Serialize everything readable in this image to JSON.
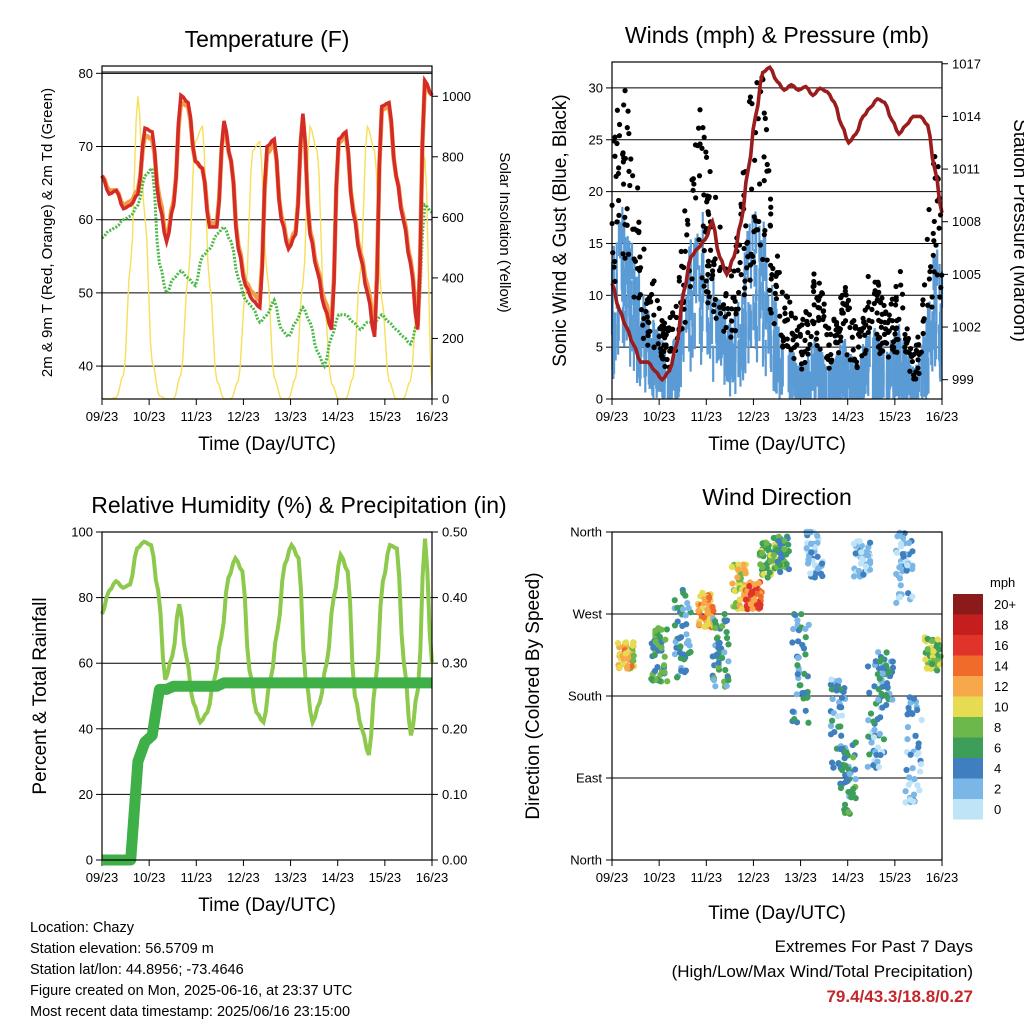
{
  "chart_data": [
    {
      "type": "line",
      "title": "Temperature (F)",
      "xlabel": "Time (Day/UTC)",
      "ylabel": "2m & 9m T (Red, Orange) & 2m Td (Green)",
      "ylabel_right": "Solar Insolation (Yellow)",
      "x_ticks": [
        "09/23",
        "10/23",
        "11/23",
        "12/23",
        "13/23",
        "14/23",
        "15/23",
        "16/23"
      ],
      "y_ticks": [
        "40",
        "50",
        "60",
        "70",
        "80"
      ],
      "y_right_ticks": [
        "0",
        "200",
        "400",
        "600",
        "800",
        "1000"
      ],
      "ylim": [
        35.5,
        81
      ],
      "ylim_right": [
        0,
        1100
      ],
      "colors": {
        "t2m": "#d42b28",
        "t9m": "#f29d45",
        "td": "#4cb848",
        "solar": "#f7df5a"
      },
      "series": [
        {
          "key": "t2m",
          "values": [
            66,
            63.5,
            64,
            61.5,
            62,
            63.5,
            72.5,
            72,
            62,
            57,
            62,
            77,
            76,
            68,
            67,
            59,
            59,
            73.5,
            68,
            56,
            51,
            49,
            48,
            70,
            71,
            60,
            56,
            58,
            74.5,
            58,
            53,
            48,
            45,
            71,
            72,
            61,
            55,
            50,
            44,
            75.5,
            76,
            66,
            60,
            54,
            45,
            79,
            77
          ]
        },
        {
          "key": "t9m",
          "values": [
            66,
            64,
            64,
            62,
            62.5,
            64,
            71.5,
            71,
            63,
            57.5,
            62.5,
            76,
            75.5,
            68,
            67,
            59.5,
            59.5,
            73,
            68,
            56.5,
            51.5,
            50,
            49,
            69,
            70.5,
            60.5,
            56.5,
            58.5,
            74,
            58.5,
            53.5,
            49,
            46,
            70.5,
            71.5,
            61.5,
            55.5,
            51,
            45,
            75,
            75.5,
            66,
            60.5,
            54.5,
            45.5,
            78.5,
            77
          ]
        },
        {
          "key": "td",
          "values": [
            57.5,
            58.5,
            59,
            60,
            60.5,
            62,
            66,
            67,
            54,
            50,
            52,
            53,
            52,
            51,
            55,
            56,
            58,
            59,
            57,
            52,
            49,
            48,
            46,
            47,
            49,
            45,
            44,
            46,
            48,
            46,
            42,
            40,
            44,
            47,
            47,
            46,
            45,
            46,
            46,
            47,
            46,
            45,
            44,
            43,
            46,
            62,
            61
          ]
        },
        {
          "key": "solar",
          "values": [
            0,
            0,
            5,
            80,
            450,
            1000,
            600,
            120,
            10,
            0,
            0,
            80,
            400,
            850,
            900,
            380,
            60,
            0,
            0,
            60,
            350,
            820,
            850,
            420,
            70,
            0,
            0,
            70,
            380,
            900,
            820,
            300,
            50,
            0,
            0,
            70,
            420,
            900,
            820,
            330,
            60,
            0,
            0,
            60,
            340,
            800,
            40
          ]
        }
      ]
    },
    {
      "type": "scatter",
      "title": "Winds (mph) & Pressure (mb)",
      "xlabel": "Time (Day/UTC)",
      "ylabel": "Sonic Wind & Gust (Blue, Black)",
      "ylabel_right": "Station Pressure (Maroon)",
      "x_ticks": [
        "09/23",
        "10/23",
        "11/23",
        "12/23",
        "13/23",
        "14/23",
        "15/23",
        "16/23"
      ],
      "y_ticks": [
        "0",
        "5",
        "10",
        "15",
        "20",
        "25",
        "30"
      ],
      "y_right_ticks": [
        "999",
        "1002",
        "1005",
        "1008",
        "1011",
        "1014",
        "1017"
      ],
      "ylim": [
        0,
        32.5
      ],
      "ylim_right": [
        997.9,
        1017.1
      ],
      "colors": {
        "wind": "#5b9bd5",
        "gust": "#000000",
        "pressure": "#9b1c1c"
      },
      "series": [
        {
          "key": "wind",
          "values": [
            8,
            11,
            12,
            9,
            7,
            5,
            4,
            3,
            2,
            3,
            6,
            9,
            10,
            11,
            8,
            7,
            5,
            4,
            6,
            9,
            11,
            12,
            9,
            6,
            4,
            3,
            2,
            1,
            2,
            3,
            2,
            1,
            2,
            3,
            2,
            1,
            3,
            4,
            3,
            2,
            3,
            4,
            2,
            1,
            2,
            5,
            9,
            7
          ]
        },
        {
          "key": "gust",
          "values": [
            17,
            21,
            22,
            18,
            12,
            9,
            8,
            6,
            5,
            7,
            11,
            16,
            19,
            20,
            15,
            13,
            10,
            9,
            12,
            17,
            22,
            25,
            18,
            12,
            8,
            7,
            6,
            5,
            7,
            9,
            7,
            5,
            6,
            8,
            6,
            5,
            7,
            10,
            8,
            6,
            7,
            9,
            5,
            3,
            5,
            12,
            18,
            14
          ]
        },
        {
          "key": "pressure",
          "values": [
            1004.5,
            1003,
            1002,
            1001,
            1000,
            1000,
            999.5,
            999,
            999.5,
            1001,
            1004,
            1006,
            1006.5,
            1007,
            1008,
            1006,
            1005,
            1006,
            1008,
            1011,
            1014,
            1016.5,
            1016.8,
            1016,
            1015.5,
            1015.8,
            1015.5,
            1015.7,
            1015.2,
            1015.6,
            1015.4,
            1014.8,
            1013.5,
            1012.5,
            1013,
            1014,
            1014.5,
            1015,
            1014.8,
            1013.8,
            1013,
            1013.5,
            1014,
            1014,
            1013.5,
            1011,
            1008.5
          ]
        }
      ]
    },
    {
      "type": "line",
      "title": "Relative Humidity (%) & Precipitation (in)",
      "xlabel": "Time (Day/UTC)",
      "ylabel": "Percent & Total Rainfall",
      "x_ticks": [
        "09/23",
        "10/23",
        "11/23",
        "12/23",
        "13/23",
        "14/23",
        "15/23",
        "16/23"
      ],
      "y_ticks": [
        "0",
        "20",
        "40",
        "60",
        "80",
        "100"
      ],
      "y_right_ticks": [
        "0.00",
        "0.10",
        "0.20",
        "0.30",
        "0.40",
        "0.50"
      ],
      "ylim": [
        0,
        100
      ],
      "ylim_right": [
        0,
        0.5
      ],
      "colors": {
        "rh": "#8dc94c",
        "precip": "#3fb047"
      },
      "series": [
        {
          "key": "rh",
          "values": [
            75,
            82,
            85,
            83,
            84,
            95,
            97,
            96,
            82,
            55,
            62,
            78,
            62,
            48,
            42,
            45,
            55,
            68,
            86,
            92,
            88,
            58,
            45,
            42,
            55,
            70,
            90,
            96,
            92,
            55,
            42,
            48,
            60,
            80,
            93,
            88,
            50,
            40,
            32,
            55,
            85,
            96,
            95,
            60,
            38,
            52,
            98,
            60
          ]
        },
        {
          "key": "precip",
          "values": [
            0,
            0,
            0,
            0,
            0,
            0.15,
            0.18,
            0.19,
            0.26,
            0.26,
            0.265,
            0.265,
            0.265,
            0.265,
            0.265,
            0.265,
            0.265,
            0.27,
            0.27,
            0.27,
            0.27,
            0.27,
            0.27,
            0.27,
            0.27,
            0.27,
            0.27,
            0.27,
            0.27,
            0.27,
            0.27,
            0.27,
            0.27,
            0.27,
            0.27,
            0.27,
            0.27,
            0.27,
            0.27,
            0.27,
            0.27,
            0.27,
            0.27,
            0.27,
            0.27,
            0.27,
            0.27
          ]
        }
      ]
    },
    {
      "type": "scatter",
      "title": "Wind Direction",
      "xlabel": "Time (Day/UTC)",
      "ylabel": "Direction (Colored By Speed)",
      "x_ticks": [
        "09/23",
        "10/23",
        "11/23",
        "12/23",
        "13/23",
        "14/23",
        "15/23",
        "16/23"
      ],
      "y_ticks": [
        "North",
        "East",
        "South",
        "West",
        "North"
      ],
      "legend": {
        "title": "mph",
        "labels": [
          "20+",
          "18",
          "16",
          "14",
          "12",
          "10",
          "8",
          "6",
          "4",
          "2",
          "0"
        ],
        "colors": [
          "#8c1a1a",
          "#c41e1e",
          "#e0342a",
          "#f06a2a",
          "#f7a84a",
          "#e5dc52",
          "#6cb84a",
          "#3d9e5a",
          "#3f7fc0",
          "#7ab6e6",
          "#bfe3f7"
        ]
      },
      "clusters": [
        {
          "day": 0.3,
          "dir": 225,
          "spread": 15,
          "speed": 11
        },
        {
          "day": 1.0,
          "dir": 225,
          "spread": 30,
          "speed": 6
        },
        {
          "day": 1.5,
          "dir": 250,
          "spread": 50,
          "speed": 4
        },
        {
          "day": 2.0,
          "dir": 275,
          "spread": 20,
          "speed": 12
        },
        {
          "day": 2.3,
          "dir": 230,
          "spread": 40,
          "speed": 5
        },
        {
          "day": 2.7,
          "dir": 300,
          "spread": 25,
          "speed": 10
        },
        {
          "day": 3.0,
          "dir": 290,
          "spread": 15,
          "speed": 14
        },
        {
          "day": 3.3,
          "dir": 330,
          "spread": 20,
          "speed": 8
        },
        {
          "day": 3.6,
          "dir": 335,
          "spread": 20,
          "speed": 6
        },
        {
          "day": 4.0,
          "dir": 210,
          "spread": 60,
          "speed": 4
        },
        {
          "day": 4.3,
          "dir": 340,
          "spread": 30,
          "speed": 2
        },
        {
          "day": 4.8,
          "dir": 150,
          "spread": 50,
          "speed": 3
        },
        {
          "day": 5.0,
          "dir": 90,
          "spread": 40,
          "speed": 5
        },
        {
          "day": 5.3,
          "dir": 330,
          "spread": 20,
          "speed": 1
        },
        {
          "day": 5.6,
          "dir": 160,
          "spread": 60,
          "speed": 3
        },
        {
          "day": 5.8,
          "dir": 200,
          "spread": 30,
          "speed": 4
        },
        {
          "day": 6.2,
          "dir": 320,
          "spread": 40,
          "speed": 2
        },
        {
          "day": 6.4,
          "dir": 120,
          "spread": 60,
          "speed": 2
        },
        {
          "day": 6.8,
          "dir": 225,
          "spread": 20,
          "speed": 8
        }
      ]
    }
  ],
  "footer": {
    "location": "Location: Chazy",
    "elevation": "Station elevation: 56.5709 m",
    "latlon": "Station lat/lon: 44.8956; -73.4646",
    "created": "Figure created on Mon, 2025-06-16, at 23:37 UTC",
    "timestamp": "Most recent data timestamp: 2025/06/16 23:15:00"
  },
  "extremes": {
    "title": "Extremes For Past 7 Days",
    "subtitle": "(High/Low/Max Wind/Total Precipitation)",
    "values": "79.4/43.3/18.8/0.27"
  }
}
